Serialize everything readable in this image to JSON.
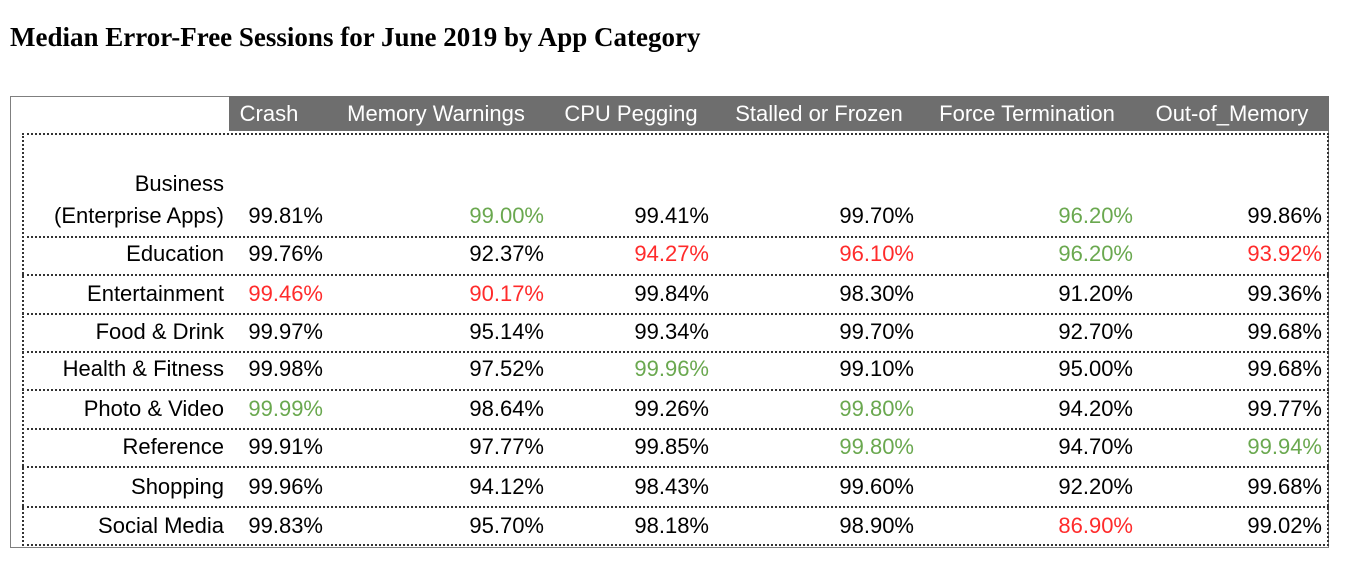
{
  "chart_data": {
    "type": "table",
    "title": "Median Error-Free Sessions for June 2019 by App Category",
    "columns": [
      "Crash",
      "Memory Warnings",
      "CPU Pegging",
      "Stalled or Frozen",
      "Force Termination",
      "Out-of_Memory"
    ],
    "rows": [
      {
        "label_lines": [
          "Business",
          "(Enterprise Apps)"
        ],
        "values": [
          "99.81%",
          "99.00%",
          "99.41%",
          "99.70%",
          "96.20%",
          "99.86%"
        ],
        "colors": [
          "black",
          "green",
          "black",
          "black",
          "green",
          "black"
        ]
      },
      {
        "label_lines": [
          "Education"
        ],
        "values": [
          "99.76%",
          "92.37%",
          "94.27%",
          "96.10%",
          "96.20%",
          "93.92%"
        ],
        "colors": [
          "black",
          "black",
          "red",
          "red",
          "green",
          "red"
        ]
      },
      {
        "label_lines": [
          "Entertainment"
        ],
        "values": [
          "99.46%",
          "90.17%",
          "99.84%",
          "98.30%",
          "91.20%",
          "99.36%"
        ],
        "colors": [
          "red",
          "red",
          "black",
          "black",
          "black",
          "black"
        ]
      },
      {
        "label_lines": [
          "Food  & Drink"
        ],
        "values": [
          "99.97%",
          "95.14%",
          "99.34%",
          "99.70%",
          "92.70%",
          "99.68%"
        ],
        "colors": [
          "black",
          "black",
          "black",
          "black",
          "black",
          "black"
        ]
      },
      {
        "label_lines": [
          "Health & Fitness"
        ],
        "values": [
          "99.98%",
          "97.52%",
          "99.96%",
          "99.10%",
          "95.00%",
          "99.68%"
        ],
        "colors": [
          "black",
          "black",
          "green",
          "black",
          "black",
          "black"
        ]
      },
      {
        "label_lines": [
          "Photo & Video"
        ],
        "values": [
          "99.99%",
          "98.64%",
          "99.26%",
          "99.80%",
          "94.20%",
          "99.77%"
        ],
        "colors": [
          "green",
          "black",
          "black",
          "green",
          "black",
          "black"
        ]
      },
      {
        "label_lines": [
          "Reference"
        ],
        "values": [
          "99.91%",
          "97.77%",
          "99.85%",
          "99.80%",
          "94.70%",
          "99.94%"
        ],
        "colors": [
          "black",
          "black",
          "black",
          "green",
          "black",
          "green"
        ]
      },
      {
        "label_lines": [
          "Shopping"
        ],
        "values": [
          "99.96%",
          "94.12%",
          "98.43%",
          "99.60%",
          "92.20%",
          "99.68%"
        ],
        "colors": [
          "black",
          "black",
          "black",
          "black",
          "black",
          "black"
        ]
      },
      {
        "label_lines": [
          "Social Media"
        ],
        "values": [
          "99.83%",
          "95.70%",
          "98.18%",
          "98.90%",
          "86.90%",
          "99.02%"
        ],
        "colors": [
          "black",
          "black",
          "black",
          "black",
          "red",
          "black"
        ]
      }
    ],
    "palette": {
      "black": "#000000",
      "green": "#6aa84f",
      "red": "#ff2b2b",
      "header_bg": "#6e6e6e",
      "header_text": "#ffffff"
    }
  }
}
